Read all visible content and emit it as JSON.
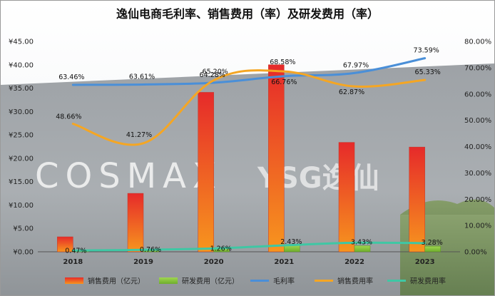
{
  "chart_data": {
    "type": "bar",
    "title": "逸仙电商毛利率、销售费用（率）及研发费用（率）",
    "categories": [
      "2018",
      "2019",
      "2020",
      "2021",
      "2022",
      "2023"
    ],
    "background_text": {
      "brand_left": "COSMAX",
      "brand_right": "YSG逸仙"
    },
    "y_left": {
      "min": 0,
      "max": 45,
      "step": 5,
      "tick_labels": [
        "¥0.00",
        "¥5.00",
        "¥10.00",
        "¥15.00",
        "¥20.00",
        "¥25.00",
        "¥30.00",
        "¥35.00",
        "¥40.00",
        "¥45.00"
      ]
    },
    "y_right": {
      "min": 0,
      "max": 80,
      "step": 10,
      "tick_labels": [
        "0.00%",
        "10.00%",
        "20.00%",
        "30.00%",
        "40.00%",
        "50.00%",
        "60.00%",
        "70.00%",
        "80.00%"
      ]
    },
    "series": [
      {
        "name": "销售费用（亿元）",
        "type": "bar",
        "axis": "left",
        "color": "#e8452a",
        "values": [
          3.2,
          12.5,
          34.1,
          40.0,
          23.4,
          22.4
        ]
      },
      {
        "name": "研发费用（亿元）",
        "type": "bar",
        "axis": "left",
        "color": "#8ccf3f",
        "values": [
          0.1,
          0.2,
          0.7,
          1.4,
          1.3,
          1.2
        ]
      },
      {
        "name": "毛利率",
        "type": "line",
        "axis": "right",
        "color": "#4a8fd8",
        "values": [
          63.46,
          63.61,
          64.28,
          66.76,
          67.97,
          73.59
        ],
        "labels": [
          "63.46%",
          "63.61%",
          "64.28%",
          "66.76%",
          "67.97%",
          "73.59%"
        ]
      },
      {
        "name": "销售费用率",
        "type": "line",
        "axis": "right",
        "color": "#f5a623",
        "values": [
          48.66,
          41.27,
          65.2,
          68.58,
          62.87,
          65.33
        ],
        "labels": [
          "48.66%",
          "41.27%",
          "65.20%",
          "68.58%",
          "62.87%",
          "65.33%"
        ]
      },
      {
        "name": "研发费用率",
        "type": "line",
        "axis": "right",
        "color": "#3fc7a4",
        "values": [
          0.47,
          0.76,
          1.26,
          2.43,
          3.43,
          3.28
        ],
        "labels": [
          "0.47%",
          "0.76%",
          "1.26%",
          "2.43%",
          "3.43%",
          "3.28%"
        ]
      }
    ],
    "legend_position": "bottom"
  }
}
